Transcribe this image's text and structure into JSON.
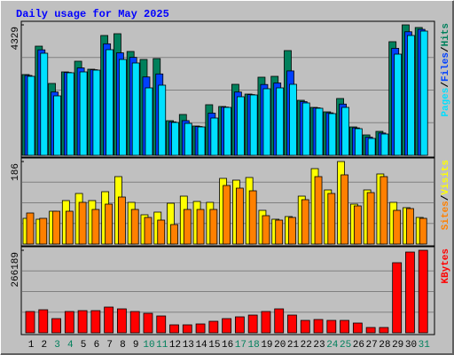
{
  "chart_data": [
    {
      "type": "bar",
      "title": "Daily usage for May 2025",
      "categories": [
        "1",
        "2",
        "3",
        "4",
        "5",
        "6",
        "7",
        "8",
        "9",
        "10",
        "11",
        "12",
        "13",
        "14",
        "15",
        "16",
        "17",
        "18",
        "19",
        "20",
        "21",
        "22",
        "23",
        "24",
        "25",
        "26",
        "27",
        "28",
        "29",
        "30",
        "31"
      ],
      "category_colors": [
        "#000000",
        "#000000",
        "#00805c",
        "#00805c",
        "#000000",
        "#000000",
        "#000000",
        "#000000",
        "#000000",
        "#00805c",
        "#00805c",
        "#000000",
        "#000000",
        "#000000",
        "#000000",
        "#000000",
        "#00805c",
        "#00805c",
        "#000000",
        "#000000",
        "#000000",
        "#000000",
        "#000000",
        "#00805c",
        "#00805c",
        "#000000",
        "#000000",
        "#000000",
        "#000000",
        "#000000",
        "#00805c"
      ],
      "legend_separator": "/",
      "series": [
        {
          "name": "Hits",
          "color": "#00805c",
          "values": [
            2680,
            3622,
            2385,
            2768,
            3122,
            2857,
            3976,
            4035,
            3446,
            3181,
            3210,
            1149,
            1355,
            972,
            1679,
            1620,
            2356,
            2032,
            2592,
            2621,
            3475,
            1826,
            1590,
            1443,
            1885,
            942,
            677,
            795,
            3770,
            4329,
            4241
          ]
        },
        {
          "name": "Files",
          "color": "#0040ff",
          "values": [
            2650,
            3500,
            2100,
            2750,
            2900,
            2840,
            3700,
            3400,
            3250,
            2600,
            2700,
            1110,
            1150,
            955,
            1400,
            1600,
            2100,
            2015,
            2350,
            2400,
            2800,
            1780,
            1575,
            1410,
            1700,
            910,
            600,
            740,
            3550,
            4100,
            4180
          ]
        },
        {
          "name": "Pages",
          "color": "#00e0ff",
          "values": [
            2621,
            3387,
            1973,
            2739,
            2768,
            2827,
            3505,
            3181,
            3063,
            2238,
            2327,
            1090,
            1060,
            942,
            1237,
            1590,
            1944,
            2003,
            2209,
            2238,
            2356,
            1738,
            1561,
            1384,
            1590,
            884,
            560,
            707,
            3357,
            3976,
            4123
          ]
        }
      ],
      "ylim": [
        0,
        4329
      ],
      "yticks": [
        4329
      ]
    },
    {
      "type": "bar",
      "series": [
        {
          "name": "Visits",
          "color": "#ffff00",
          "values": [
            58,
            56,
            74,
            98,
            114,
            98,
            118,
            152,
            94,
            66,
            72,
            92,
            108,
            96,
            94,
            148,
            144,
            150,
            76,
            56,
            62,
            108,
            170,
            122,
            186,
            90,
            122,
            158,
            94,
            82,
            60
          ]
        },
        {
          "name": "Sites",
          "color": "#ff8000",
          "values": [
            70,
            58,
            74,
            74,
            94,
            78,
            90,
            106,
            78,
            60,
            54,
            44,
            78,
            78,
            78,
            132,
            126,
            120,
            64,
            54,
            60,
            100,
            152,
            114,
            156,
            86,
            116,
            152,
            76,
            80,
            58
          ]
        }
      ],
      "ylim": [
        0,
        186
      ],
      "yticks": [
        186
      ]
    },
    {
      "type": "bar",
      "series": [
        {
          "name": "KBytes",
          "color": "#ff0000",
          "values": [
            68688,
            74412,
            45792,
            68688,
            71550,
            71550,
            82998,
            77274,
            68688,
            62964,
            54378,
            25758,
            25758,
            28620,
            37206,
            45792,
            51516,
            57240,
            68688,
            77274,
            57240,
            40068,
            42930,
            40068,
            40068,
            31482,
            17172,
            17172,
            226098,
            260442,
            266189
          ]
        }
      ],
      "ylim": [
        0,
        266189
      ],
      "yticks": [
        266189
      ]
    }
  ]
}
